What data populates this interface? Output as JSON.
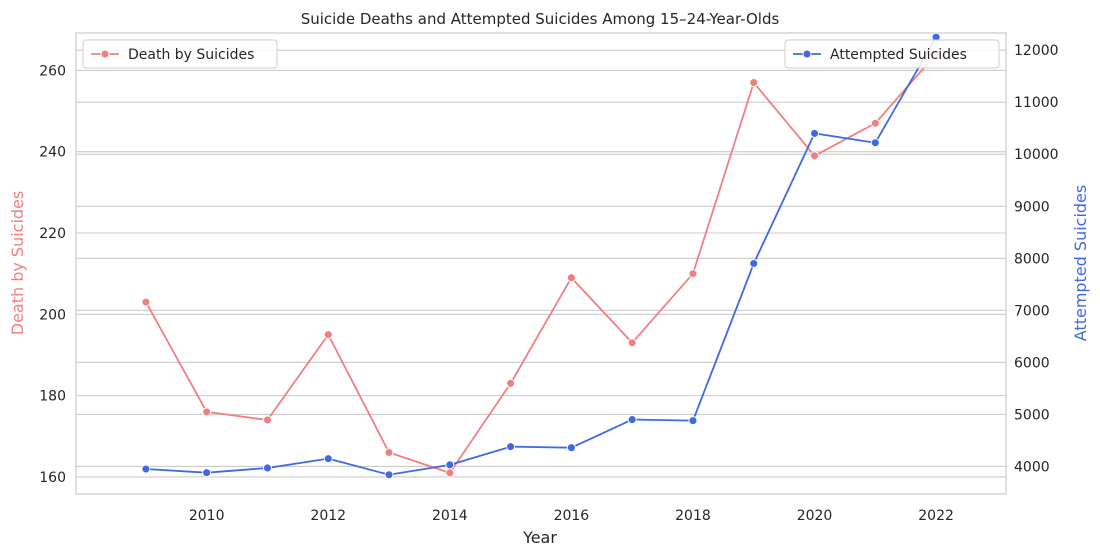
{
  "chart_data": {
    "type": "line",
    "title": "Suicide Deaths and Attempted Suicides Among 15–24-Year-Olds",
    "xlabel": "Year",
    "ylabel_left": "Death by Suicides",
    "ylabel_right": "Attempted Suicides",
    "x": [
      2009,
      2010,
      2011,
      2012,
      2013,
      2014,
      2015,
      2016,
      2017,
      2018,
      2019,
      2020,
      2021,
      2022
    ],
    "xlim": [
      2007.85,
      2023.15
    ],
    "x_ticks": [
      2010,
      2012,
      2014,
      2016,
      2018,
      2020,
      2022
    ],
    "ylim_left": [
      155.8,
      269.2
    ],
    "y_ticks_left": [
      160,
      180,
      200,
      220,
      240,
      260
    ],
    "ylim_right": [
      3470,
      12330
    ],
    "y_ticks_right": [
      4000,
      5000,
      6000,
      7000,
      8000,
      9000,
      10000,
      11000,
      12000
    ],
    "grid": true,
    "series": [
      {
        "name": "Death by Suicides",
        "axis": "left",
        "color": "#f08080",
        "values": [
          203,
          176,
          174,
          195,
          166,
          161,
          183,
          209,
          193,
          210,
          257,
          239,
          247,
          264
        ]
      },
      {
        "name": "Attempted Suicides",
        "axis": "right",
        "color": "#4169e1",
        "values": [
          3950,
          3880,
          3970,
          4150,
          3840,
          4030,
          4380,
          4360,
          4900,
          4880,
          7900,
          10400,
          10220,
          12250
        ]
      }
    ],
    "legends": [
      {
        "series": "Death by Suicides",
        "position": "upper left"
      },
      {
        "series": "Attempted Suicides",
        "position": "upper right"
      }
    ]
  }
}
